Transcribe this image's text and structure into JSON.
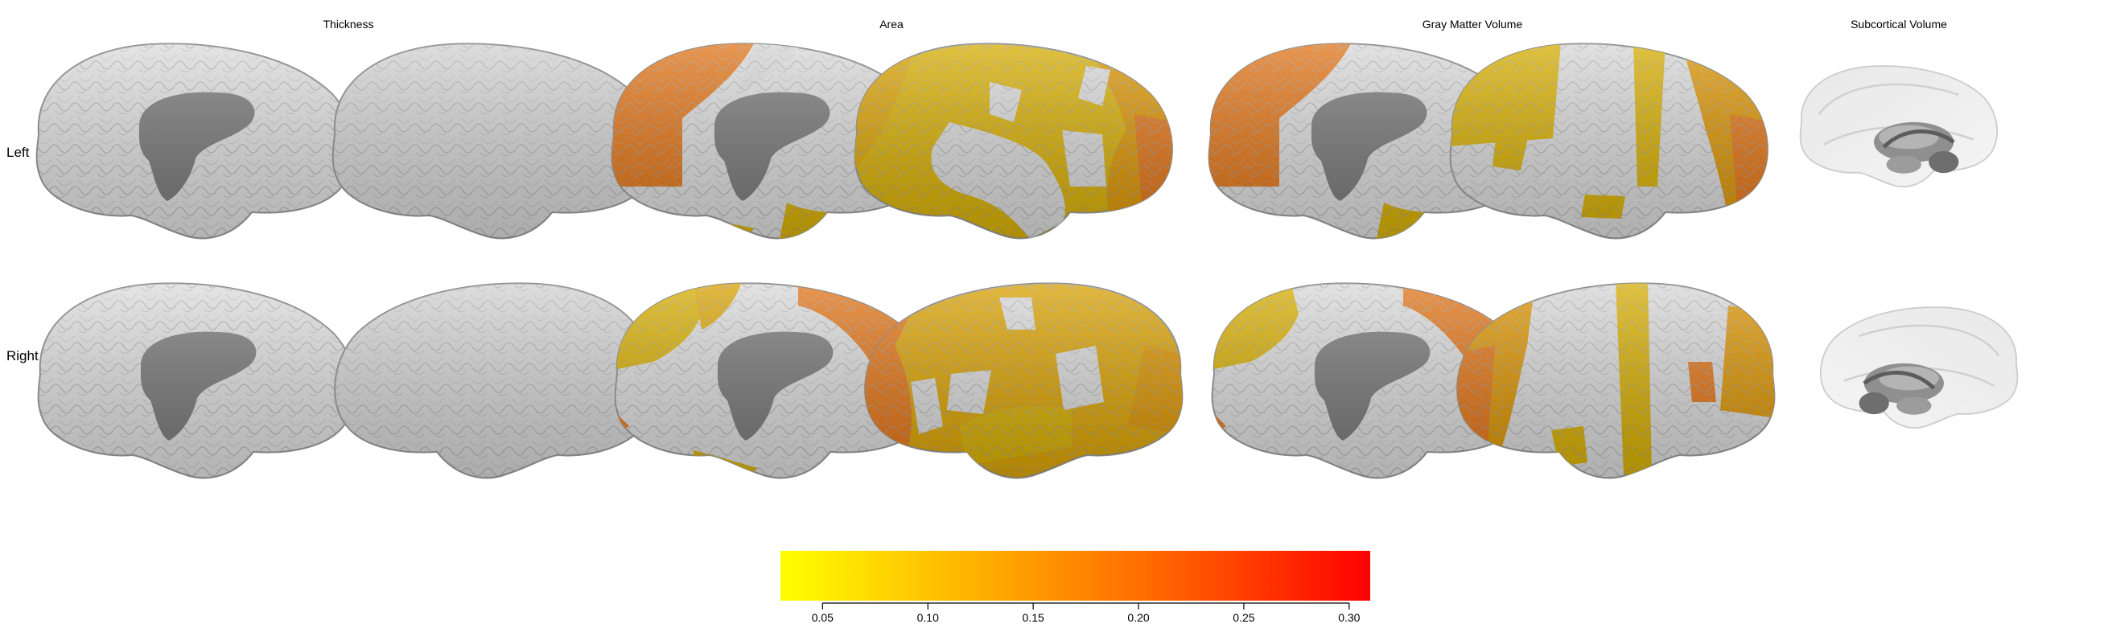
{
  "columns": {
    "thickness": "Thickness",
    "area": "Area",
    "gmv": "Gray Matter Volume",
    "subcortical": "Subcortical Volume"
  },
  "rows": {
    "left": "Left",
    "right": "Right"
  },
  "colorbar": {
    "colors": [
      "#ffff00",
      "#ffb000",
      "#ff6000",
      "#ff0000"
    ],
    "range": [
      0.03,
      0.31
    ],
    "ticks": [
      "0.05",
      "0.10",
      "0.15",
      "0.20",
      "0.25",
      "0.30"
    ]
  },
  "palette": {
    "cortex": "#dcdcdc",
    "medial_wall": "#7a7a7a",
    "effect_low": "#d6ad00",
    "effect_mid": "#d99200",
    "effect_high": "#e07316"
  }
}
